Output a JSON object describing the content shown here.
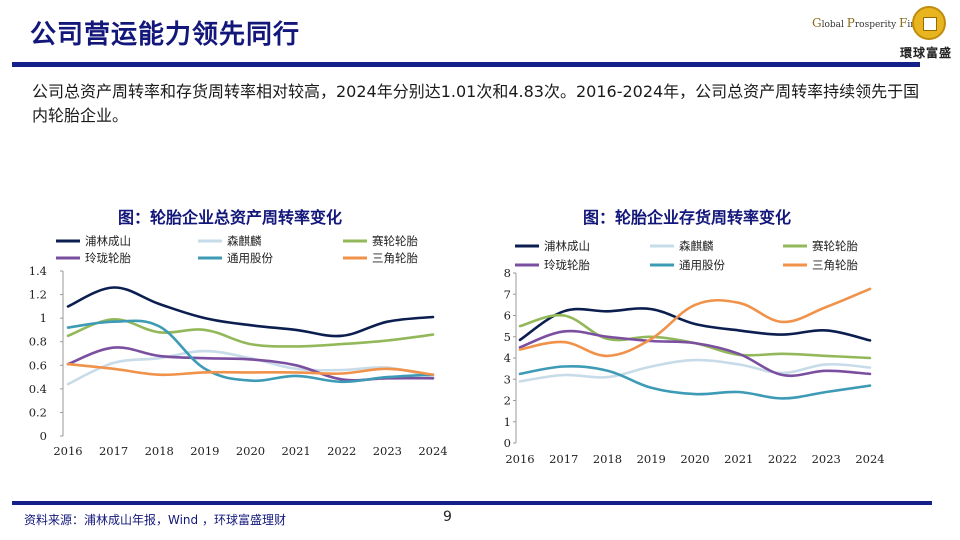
{
  "page": {
    "title": "公司营运能力领先同行",
    "description": "公司总资产周转率和存货周转率相对较高，2024年分别达1.01次和4.83次。2016-2024年，公司总资产周转率持续领先于国内轮胎企业。",
    "source": "资料来源：浦林成山年报，Wind ，环球富盛理财",
    "page_number": "9",
    "logo": {
      "en_g": "G",
      "en_lobal": "lobal",
      "en_p": "P",
      "en_rosperity": "rosperity",
      "en_f": "F",
      "en_inancial": "inancial",
      "cn": "環球富盛",
      "seal_chars": [
        "環",
        "球",
        "富",
        "盛"
      ]
    }
  },
  "chart_data": [
    {
      "type": "line",
      "title": "图：轮胎企业总资产周转率变化",
      "categories": [
        "2016",
        "2017",
        "2018",
        "2019",
        "2020",
        "2021",
        "2022",
        "2023",
        "2024"
      ],
      "ylim": [
        0,
        1.4
      ],
      "yticks": [
        "0",
        "0.2",
        "0.4",
        "0.6",
        "0.8",
        "1",
        "1.2",
        "1.4"
      ],
      "series": [
        {
          "name": "浦林成山",
          "color": "#0b1e4f",
          "values": [
            1.1,
            1.26,
            1.12,
            1.0,
            0.94,
            0.9,
            0.85,
            0.97,
            1.01
          ]
        },
        {
          "name": "森麒麟",
          "color": "#c7dbe8",
          "values": [
            0.44,
            0.62,
            0.66,
            0.72,
            0.66,
            0.57,
            0.56,
            0.58,
            0.5
          ]
        },
        {
          "name": "赛轮轮胎",
          "color": "#93b85a",
          "values": [
            0.85,
            0.99,
            0.88,
            0.9,
            0.78,
            0.76,
            0.78,
            0.81,
            0.86
          ]
        },
        {
          "name": "玲珑轮胎",
          "color": "#7a4fa0",
          "values": [
            0.61,
            0.75,
            0.68,
            0.66,
            0.65,
            0.6,
            0.48,
            0.49,
            0.49
          ]
        },
        {
          "name": "通用股份",
          "color": "#3d9bb5",
          "values": [
            0.92,
            0.97,
            0.93,
            0.57,
            0.47,
            0.51,
            0.46,
            0.5,
            0.52
          ]
        },
        {
          "name": "三角轮胎",
          "color": "#f0924a",
          "values": [
            0.61,
            0.57,
            0.52,
            0.54,
            0.54,
            0.54,
            0.53,
            0.57,
            0.52
          ]
        }
      ]
    },
    {
      "type": "line",
      "title": "图：轮胎企业存货周转率变化",
      "categories": [
        "2016",
        "2017",
        "2018",
        "2019",
        "2020",
        "2021",
        "2022",
        "2023",
        "2024"
      ],
      "ylim": [
        0,
        8
      ],
      "yticks": [
        "0",
        "1",
        "2",
        "3",
        "4",
        "5",
        "6",
        "7",
        "8"
      ],
      "series": [
        {
          "name": "浦林成山",
          "color": "#0b1e4f",
          "values": [
            4.85,
            6.2,
            6.2,
            6.3,
            5.6,
            5.3,
            5.1,
            5.3,
            4.83
          ]
        },
        {
          "name": "森麒麟",
          "color": "#c7dbe8",
          "values": [
            2.9,
            3.2,
            3.1,
            3.6,
            3.9,
            3.7,
            3.3,
            3.7,
            3.55
          ]
        },
        {
          "name": "赛轮轮胎",
          "color": "#93b85a",
          "values": [
            5.5,
            6.0,
            4.9,
            5.0,
            4.7,
            4.15,
            4.2,
            4.1,
            4.0
          ]
        },
        {
          "name": "玲珑轮胎",
          "color": "#7a4fa0",
          "values": [
            4.5,
            5.25,
            5.0,
            4.8,
            4.7,
            4.2,
            3.2,
            3.4,
            3.25
          ]
        },
        {
          "name": "通用股份",
          "color": "#3d9bb5",
          "values": [
            3.25,
            3.6,
            3.4,
            2.6,
            2.3,
            2.4,
            2.1,
            2.4,
            2.7
          ]
        },
        {
          "name": "三角轮胎",
          "color": "#f0924a",
          "values": [
            4.4,
            4.75,
            4.1,
            4.9,
            6.5,
            6.6,
            5.7,
            6.4,
            7.25
          ]
        }
      ]
    }
  ]
}
